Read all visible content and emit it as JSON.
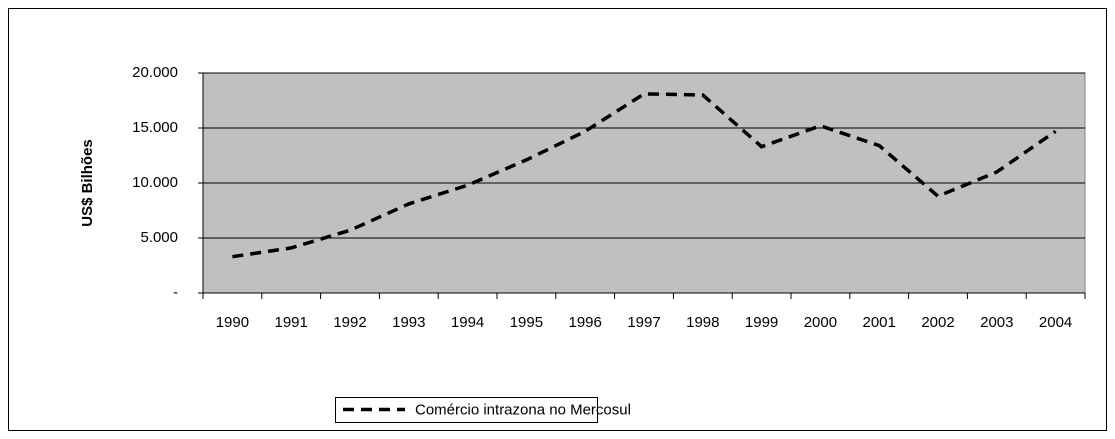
{
  "chart_data": {
    "type": "line",
    "y_label": "US$ Bilhões",
    "categories": [
      "1990",
      "1991",
      "1992",
      "1993",
      "1994",
      "1995",
      "1996",
      "1997",
      "1998",
      "1999",
      "2000",
      "2001",
      "2002",
      "2003",
      "2004"
    ],
    "series": [
      {
        "name": "Comércio intrazona no Mercosul",
        "color": "#000000",
        "values": [
          3300,
          4100,
          5700,
          8100,
          9800,
          12100,
          14700,
          18100,
          18000,
          13300,
          15200,
          13400,
          8800,
          11000,
          14700
        ]
      }
    ],
    "ylim": [
      0,
      20000
    ],
    "yticks": [
      {
        "value": 0,
        "label": "-"
      },
      {
        "value": 5000,
        "label": "5.000"
      },
      {
        "value": 10000,
        "label": "10.000"
      },
      {
        "value": 15000,
        "label": "15.000"
      },
      {
        "value": 20000,
        "label": "20.000"
      }
    ],
    "grid": true,
    "legend": "bottom"
  }
}
